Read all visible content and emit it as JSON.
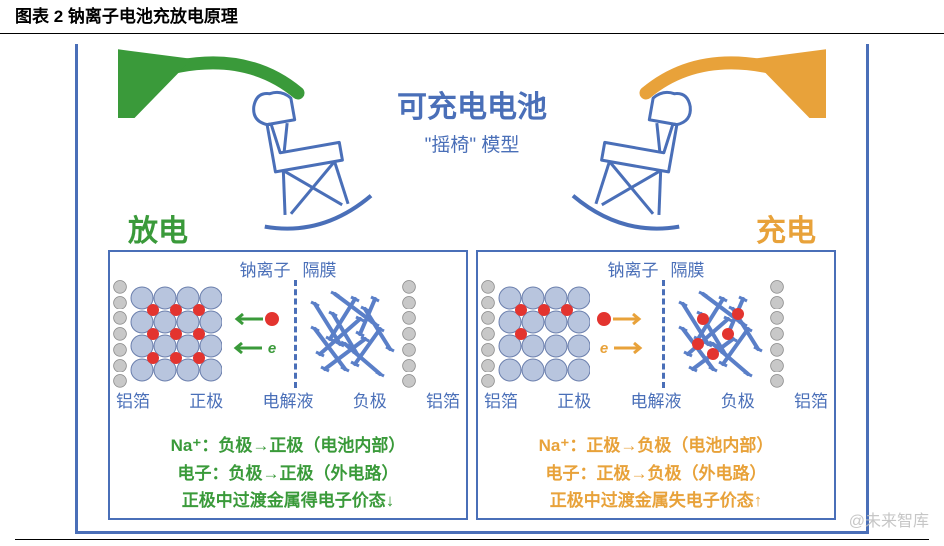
{
  "header_title": "图表 2  钠离子电池充放电原理",
  "watermark": "@未来智库",
  "colors": {
    "border": "#4a6fb8",
    "text_blue": "#4a6fb8",
    "discharge_green": "#3a9a3a",
    "charge_orange": "#e8a23a",
    "ion_red": "#e3342f",
    "sphere_fill": "#b8c5de",
    "sphere_stroke": "#6b7fad",
    "foil_fill": "#c8c8c8",
    "foil_stroke": "#888888",
    "rod_blue": "#5a7fc8"
  },
  "center": {
    "title": "可充电电池",
    "subtitle": "\"摇椅\" 模型"
  },
  "sides": {
    "left_label": "放电",
    "right_label": "充电"
  },
  "top_labels": {
    "ion": "钠离子",
    "sep": "隔膜"
  },
  "bottom_labels": {
    "a": "铝箔",
    "b": "正极",
    "c": "电解液",
    "d": "负极",
    "e": "铝箔"
  },
  "electron_label": "e",
  "discharge_text": {
    "l1": "Na⁺：负极→正极（电池内部）",
    "l2": "电子：负极→正极（外电路）",
    "l3": "正极中过渡金属得电子价态↓"
  },
  "charge_text": {
    "l1": "Na⁺：正极→负极（电池内部）",
    "l2": "电子：正极→负极（外电路）",
    "l3": "正极中过渡金属失电子价态↑"
  }
}
